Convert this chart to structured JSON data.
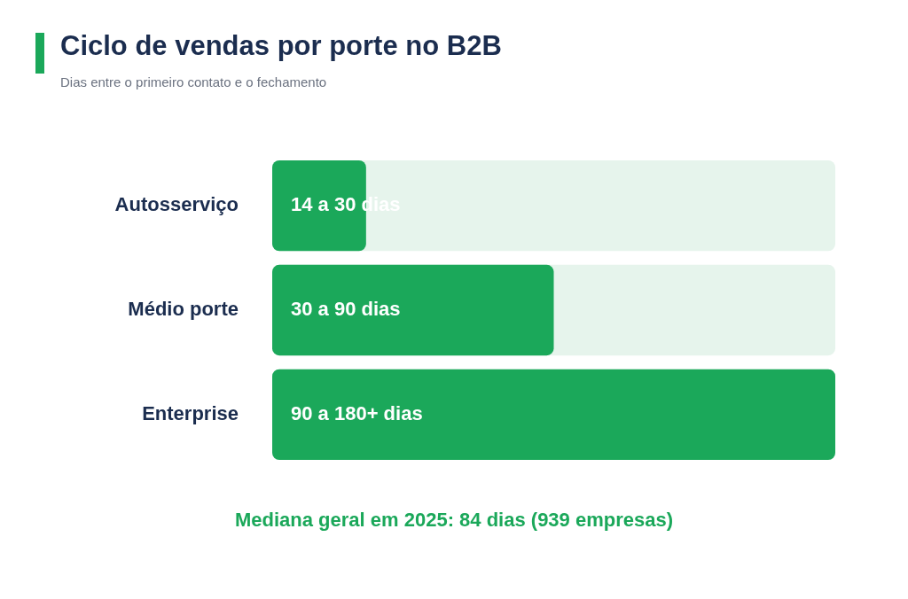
{
  "chart_data": {
    "type": "bar",
    "orientation": "horizontal",
    "xlim": [
      0,
      180
    ],
    "tick_labels": "y",
    "title": "Ciclo de vendas por porte no B2B",
    "subtitle": "Dias entre o primeiro contato e o fechamento",
    "categories": [
      "Autosserviço",
      "Médio porte",
      "Enterprise"
    ],
    "values": [
      30,
      90,
      180
    ],
    "value_labels": [
      "14 a 30 dias",
      "30 a 90 dias",
      "90 a 180+ dias"
    ],
    "color": "#1ba85a",
    "annotations": [
      "Mediana geral em 2025: 84 dias (939 empresas)"
    ]
  }
}
